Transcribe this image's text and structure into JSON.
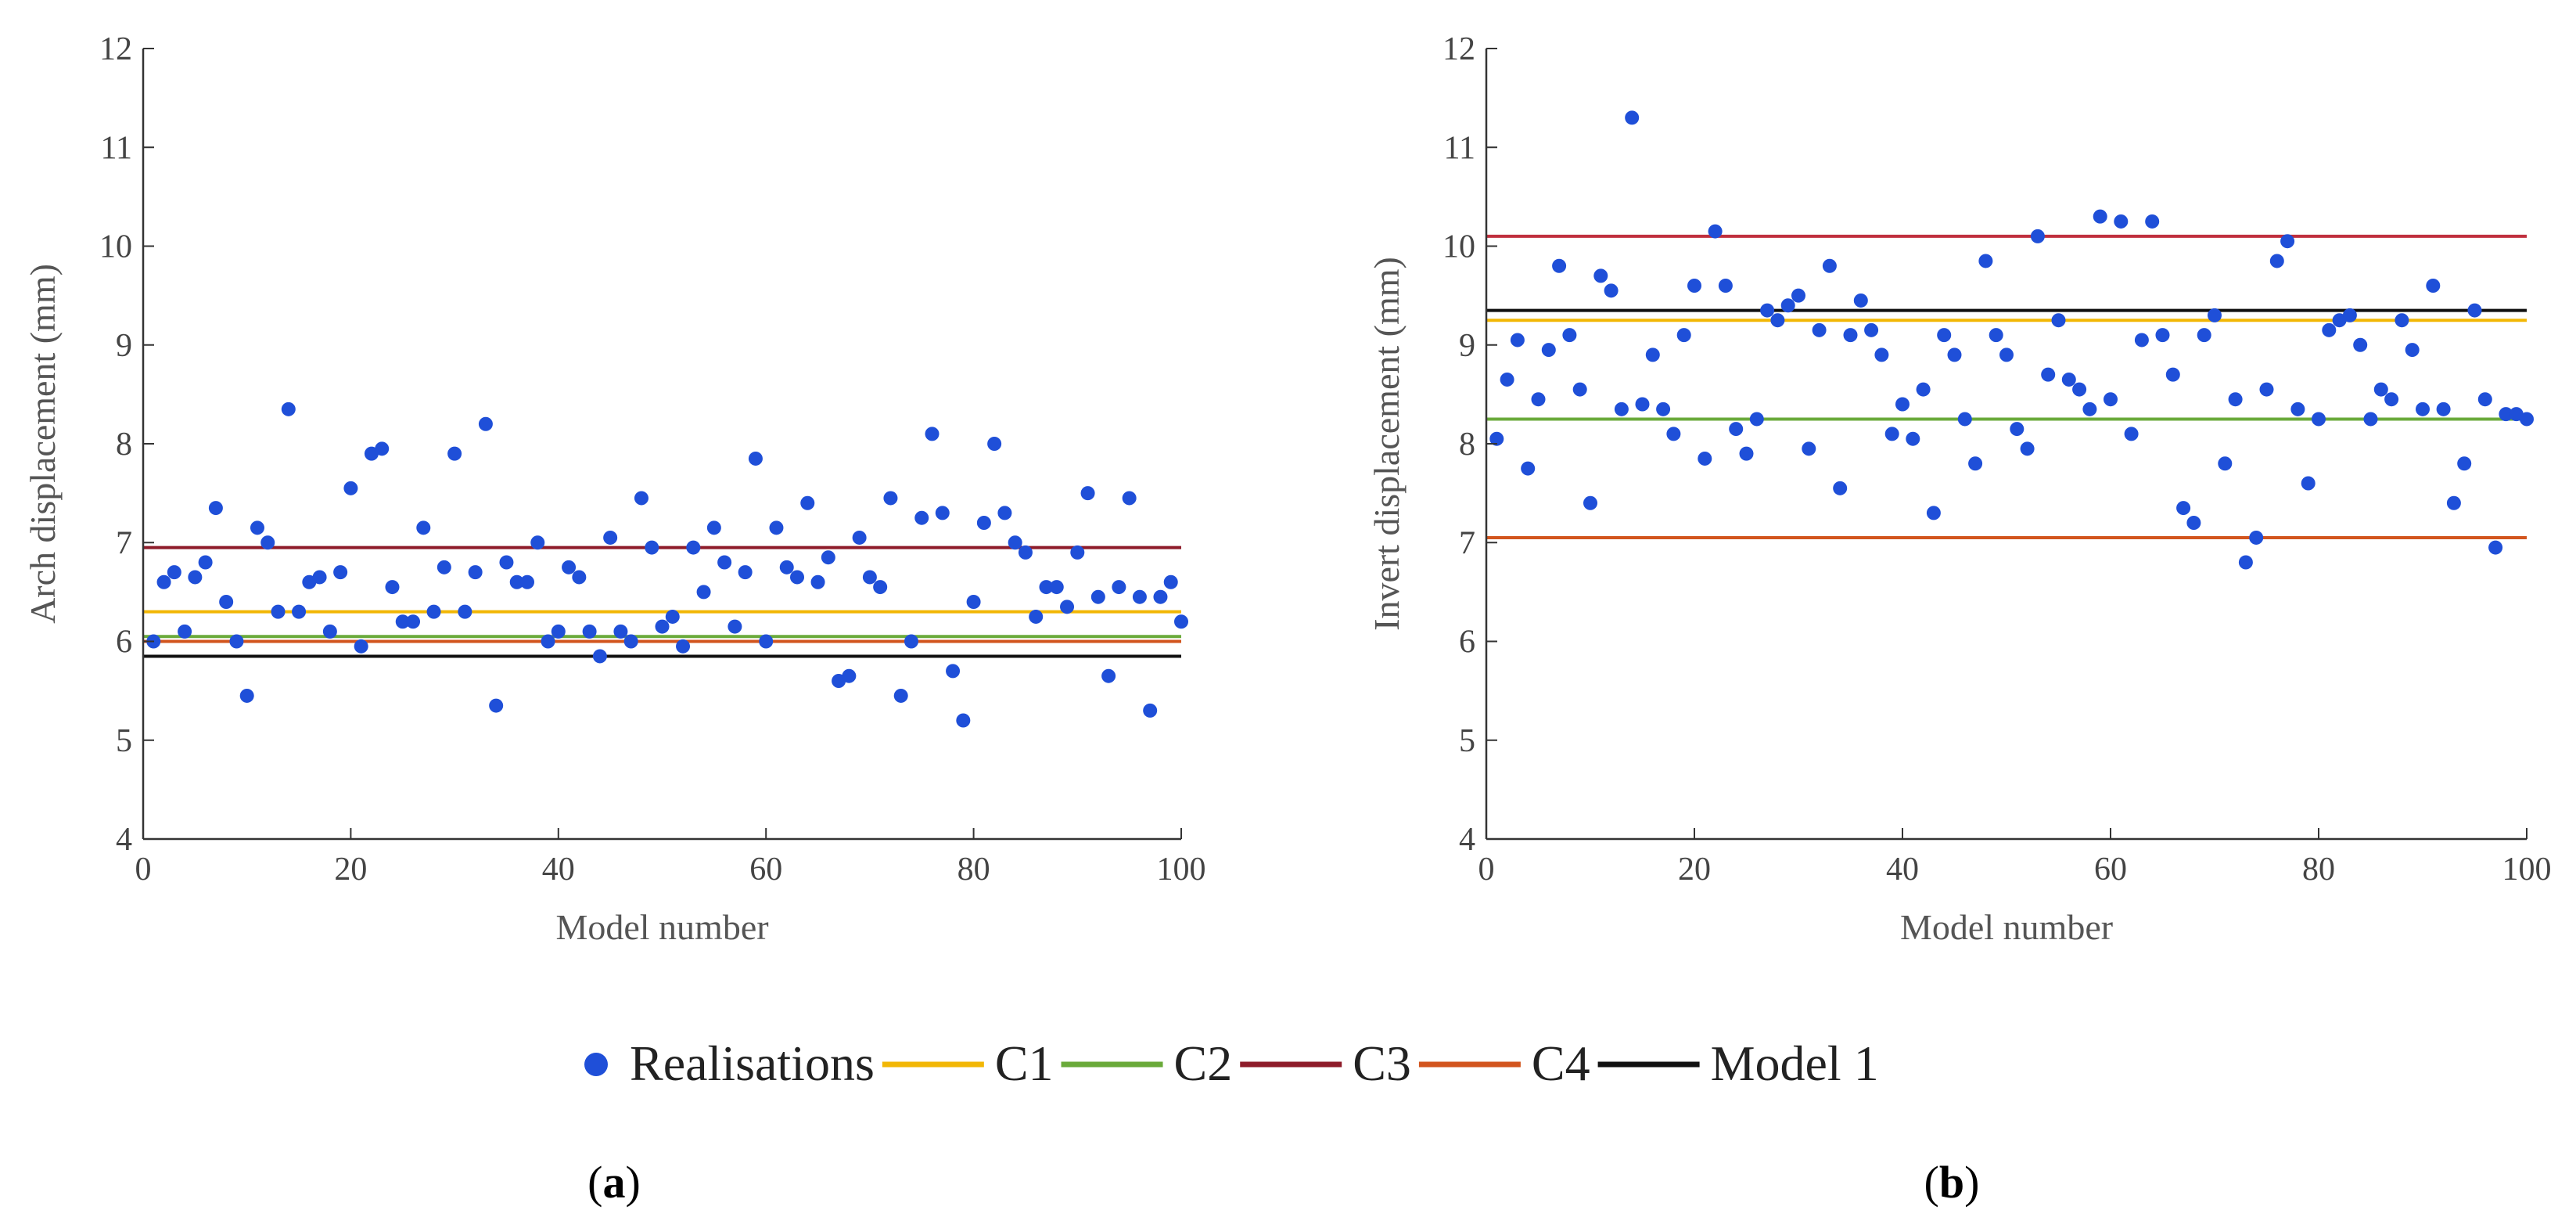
{
  "chart_data": [
    {
      "type": "scatter",
      "panel": "a",
      "panel_label": "a",
      "xlabel": "Model number",
      "ylabel": "Arch displacement (mm)",
      "xlim": [
        0,
        100
      ],
      "ylim": [
        4,
        12
      ],
      "xticks": [
        0,
        20,
        40,
        60,
        80,
        100
      ],
      "yticks": [
        4,
        5,
        6,
        7,
        8,
        9,
        10,
        11,
        12
      ],
      "scatter": {
        "name": "Realisations",
        "color": "#1f4fd8",
        "x": [
          1,
          2,
          3,
          4,
          5,
          6,
          7,
          8,
          9,
          10,
          11,
          12,
          13,
          14,
          15,
          16,
          17,
          18,
          19,
          20,
          21,
          22,
          23,
          24,
          25,
          26,
          27,
          28,
          29,
          30,
          31,
          32,
          33,
          34,
          35,
          36,
          37,
          38,
          39,
          40,
          41,
          42,
          43,
          44,
          45,
          46,
          47,
          48,
          49,
          50,
          51,
          52,
          53,
          54,
          55,
          56,
          57,
          58,
          59,
          60,
          61,
          62,
          63,
          64,
          65,
          66,
          67,
          68,
          69,
          70,
          71,
          72,
          73,
          74,
          75,
          76,
          77,
          78,
          79,
          80,
          81,
          82,
          83,
          84,
          85,
          86,
          87,
          88,
          89,
          90,
          91,
          92,
          93,
          94,
          95,
          96,
          97,
          98,
          99,
          100
        ],
        "y": [
          6.0,
          6.6,
          6.7,
          6.1,
          6.65,
          6.8,
          7.35,
          6.4,
          6.0,
          5.45,
          7.15,
          7.0,
          6.3,
          8.35,
          6.3,
          6.6,
          6.65,
          6.1,
          6.7,
          7.55,
          5.95,
          7.9,
          7.95,
          6.55,
          6.2,
          6.2,
          7.15,
          6.3,
          6.75,
          7.9,
          6.3,
          6.7,
          8.2,
          5.35,
          6.8,
          6.6,
          6.6,
          7.0,
          6.0,
          6.1,
          6.75,
          6.65,
          6.1,
          5.85,
          7.05,
          6.1,
          6.0,
          7.45,
          6.95,
          6.15,
          6.25,
          5.95,
          6.95,
          6.5,
          7.15,
          6.8,
          6.15,
          6.7,
          7.85,
          6.0,
          7.15,
          6.75,
          6.65,
          7.4,
          6.6,
          6.85,
          5.6,
          5.65,
          7.05,
          6.65,
          6.55,
          7.45,
          5.45,
          6.0,
          7.25,
          8.1,
          7.3,
          5.7,
          5.2,
          6.4,
          7.2,
          8.0,
          7.3,
          7.0,
          6.9,
          6.25,
          6.55,
          6.55,
          6.35,
          6.9,
          7.5,
          6.45,
          5.65,
          6.55,
          7.45,
          6.45,
          5.3,
          6.45,
          6.6,
          6.2
        ]
      },
      "hlines": [
        {
          "name": "C1",
          "y": 6.3,
          "color": "#f2b705"
        },
        {
          "name": "C2",
          "y": 6.05,
          "color": "#6aaa3a"
        },
        {
          "name": "C3",
          "y": 6.95,
          "color": "#8e1c2a"
        },
        {
          "name": "C4",
          "y": 6.0,
          "color": "#d2551e"
        },
        {
          "name": "Model 1",
          "y": 5.85,
          "color": "#111111"
        }
      ]
    },
    {
      "type": "scatter",
      "panel": "b",
      "panel_label": "b",
      "xlabel": "Model number",
      "ylabel": "Invert displacement (mm)",
      "xlim": [
        0,
        100
      ],
      "ylim": [
        4,
        12
      ],
      "xticks": [
        0,
        20,
        40,
        60,
        80,
        100
      ],
      "yticks": [
        4,
        5,
        6,
        7,
        8,
        9,
        10,
        11,
        12
      ],
      "scatter": {
        "name": "Realisations",
        "color": "#1f4fd8",
        "x": [
          1,
          2,
          3,
          4,
          5,
          6,
          7,
          8,
          9,
          10,
          11,
          12,
          13,
          14,
          15,
          16,
          17,
          18,
          19,
          20,
          21,
          22,
          23,
          24,
          25,
          26,
          27,
          28,
          29,
          30,
          31,
          32,
          33,
          34,
          35,
          36,
          37,
          38,
          39,
          40,
          41,
          42,
          43,
          44,
          45,
          46,
          47,
          48,
          49,
          50,
          51,
          52,
          53,
          54,
          55,
          56,
          57,
          58,
          59,
          60,
          61,
          62,
          63,
          64,
          65,
          66,
          67,
          68,
          69,
          70,
          71,
          72,
          73,
          74,
          75,
          76,
          77,
          78,
          79,
          80,
          81,
          82,
          83,
          84,
          85,
          86,
          87,
          88,
          89,
          90,
          91,
          92,
          93,
          94,
          95,
          96,
          97,
          98,
          99,
          100
        ],
        "y": [
          8.05,
          8.65,
          9.05,
          7.75,
          8.45,
          8.95,
          9.8,
          9.1,
          8.55,
          7.4,
          9.7,
          9.55,
          8.35,
          11.3,
          8.4,
          8.9,
          8.35,
          8.1,
          9.1,
          9.6,
          7.85,
          10.15,
          9.6,
          8.15,
          7.9,
          8.25,
          9.35,
          9.25,
          9.4,
          9.5,
          7.95,
          9.15,
          9.8,
          7.55,
          9.1,
          9.45,
          9.15,
          8.9,
          8.1,
          8.4,
          8.05,
          8.55,
          7.3,
          9.1,
          8.9,
          8.25,
          7.8,
          9.85,
          9.1,
          8.9,
          8.15,
          7.95,
          10.1,
          8.7,
          9.25,
          8.65,
          8.55,
          8.35,
          10.3,
          8.45,
          10.25,
          8.1,
          9.05,
          10.25,
          9.1,
          8.7,
          7.35,
          7.2,
          9.1,
          9.3,
          7.8,
          8.45,
          6.8,
          7.05,
          8.55,
          9.85,
          10.05,
          8.35,
          7.6,
          8.25,
          9.15,
          9.25,
          9.3,
          9.0,
          8.25,
          8.55,
          8.45,
          9.25,
          8.95,
          8.35,
          9.6,
          8.35,
          7.4,
          7.8,
          9.35,
          8.45,
          6.95,
          8.3,
          8.3,
          8.25
        ]
      },
      "hlines": [
        {
          "name": "C1",
          "y": 9.25,
          "color": "#f2b705"
        },
        {
          "name": "C2",
          "y": 8.25,
          "color": "#6aaa3a"
        },
        {
          "name": "C3",
          "y": 10.1,
          "color": "#c0303e"
        },
        {
          "name": "C4",
          "y": 7.05,
          "color": "#d2551e"
        },
        {
          "name": "Model 1",
          "y": 9.35,
          "color": "#111111"
        }
      ]
    }
  ],
  "legend": {
    "position": "bottom-center",
    "entries": [
      {
        "name": "Realisations",
        "kind": "marker",
        "color": "#1f4fd8"
      },
      {
        "name": "C1",
        "kind": "line",
        "color": "#f2b705"
      },
      {
        "name": "C2",
        "kind": "line",
        "color": "#6aaa3a"
      },
      {
        "name": "C3",
        "kind": "line",
        "color": "#8e1c2a"
      },
      {
        "name": "C4",
        "kind": "line",
        "color": "#d2551e"
      },
      {
        "name": "Model 1",
        "kind": "line",
        "color": "#111111"
      }
    ]
  }
}
